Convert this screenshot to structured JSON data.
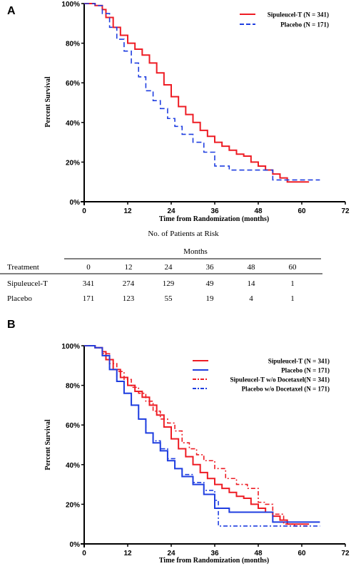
{
  "panel_a": {
    "letter": "A"
  },
  "panel_b": {
    "letter": "B"
  },
  "risk_table": {
    "title": "No. of Patients at Risk",
    "months_header": "Months",
    "treatment_header": "Treatment",
    "columns": [
      "0",
      "12",
      "24",
      "36",
      "48",
      "60"
    ],
    "rows": [
      {
        "label": "Sipuleucel-T",
        "values": [
          "341",
          "274",
          "129",
          "49",
          "14",
          "1"
        ]
      },
      {
        "label": "Placebo",
        "values": [
          "171",
          "123",
          "55",
          "19",
          "4",
          "1"
        ]
      }
    ]
  },
  "chart_data": [
    {
      "type": "line",
      "panel": "A",
      "title": "",
      "xlabel": "Time from Randomization (months)",
      "ylabel": "Percent Survival",
      "xlim": [
        0,
        72
      ],
      "ylim": [
        0,
        100
      ],
      "xticks": [
        "0",
        "12",
        "24",
        "36",
        "48",
        "60",
        "72"
      ],
      "yticks": [
        "0%",
        "20%",
        "40%",
        "60%",
        "80%",
        "100%"
      ],
      "grid": false,
      "legend": "top-right",
      "series": [
        {
          "name": "Sipuleucel-T (N = 341)",
          "color": "#ee1c24",
          "style": "solid",
          "x": [
            0,
            3,
            5,
            6,
            8,
            10,
            12,
            14,
            16,
            18,
            20,
            22,
            24,
            26,
            28,
            30,
            32,
            34,
            36,
            38,
            40,
            42,
            44,
            46,
            48,
            50,
            52,
            54,
            56,
            58,
            60,
            62
          ],
          "y": [
            100,
            99,
            97,
            93,
            88,
            84,
            80,
            77,
            74,
            70,
            65,
            59,
            53,
            48,
            44,
            40,
            36,
            33,
            30,
            28,
            26,
            24,
            23,
            20,
            18,
            16,
            14,
            12,
            10,
            10,
            10,
            10
          ]
        },
        {
          "name": "Placebo (N = 171)",
          "color": "#1f3ee0",
          "style": "dashed",
          "x": [
            0,
            3,
            5,
            7,
            9,
            11,
            13,
            15,
            17,
            19,
            21,
            23,
            25,
            27,
            30,
            33,
            36,
            40,
            44,
            48,
            51,
            52,
            56,
            60,
            65
          ],
          "y": [
            100,
            99,
            95,
            88,
            82,
            76,
            70,
            63,
            56,
            51,
            47,
            42,
            38,
            34,
            30,
            25,
            18,
            16,
            16,
            16,
            16,
            11,
            11,
            11,
            11
          ]
        }
      ]
    },
    {
      "type": "line",
      "panel": "B",
      "title": "",
      "xlabel": "Time from Randomization (months)",
      "ylabel": "Percent Survival",
      "xlim": [
        0,
        72
      ],
      "ylim": [
        0,
        100
      ],
      "xticks": [
        "0",
        "12",
        "24",
        "36",
        "48",
        "60",
        "72"
      ],
      "yticks": [
        "0%",
        "20%",
        "40%",
        "60%",
        "80%",
        "100%"
      ],
      "grid": false,
      "legend": "top-right",
      "series": [
        {
          "name": "Sipuleucel-T (N = 341)",
          "color": "#ee1c24",
          "style": "solid",
          "x": [
            0,
            3,
            5,
            6,
            8,
            10,
            12,
            14,
            16,
            18,
            20,
            22,
            24,
            26,
            28,
            30,
            32,
            34,
            36,
            38,
            40,
            42,
            44,
            46,
            48,
            50,
            52,
            54,
            56,
            58,
            60,
            62
          ],
          "y": [
            100,
            99,
            97,
            93,
            88,
            84,
            80,
            77,
            74,
            70,
            65,
            59,
            53,
            48,
            44,
            40,
            36,
            33,
            30,
            28,
            26,
            24,
            23,
            20,
            18,
            16,
            14,
            12,
            10,
            10,
            10,
            10
          ]
        },
        {
          "name": "Placebo (N = 171)",
          "color": "#1f3ee0",
          "style": "solid",
          "x": [
            0,
            3,
            5,
            7,
            9,
            11,
            13,
            15,
            17,
            19,
            21,
            23,
            25,
            27,
            30,
            33,
            36,
            40,
            44,
            48,
            51,
            52,
            56,
            60,
            65
          ],
          "y": [
            100,
            99,
            95,
            88,
            82,
            76,
            70,
            63,
            56,
            51,
            47,
            42,
            38,
            34,
            30,
            25,
            18,
            16,
            16,
            16,
            16,
            11,
            11,
            11,
            11
          ]
        },
        {
          "name": "Sipuleucel-T w/o Docetaxel(N = 341)",
          "color": "#ee1c24",
          "style": "dashdot",
          "x": [
            0,
            3,
            5,
            7,
            9,
            11,
            13,
            15,
            17,
            19,
            21,
            23,
            25,
            27,
            29,
            31,
            33,
            36,
            39,
            42,
            45,
            48,
            50,
            52,
            55,
            58,
            62
          ],
          "y": [
            100,
            99,
            96,
            91,
            87,
            83,
            79,
            76,
            72,
            67,
            63,
            61,
            57,
            51,
            48,
            45,
            42,
            38,
            33,
            30,
            28,
            21,
            20,
            15,
            10,
            9,
            9
          ]
        },
        {
          "name": "Placebo w/o Docetaxel (N = 171)",
          "color": "#1f3ee0",
          "style": "dashdot",
          "x": [
            0,
            3,
            5,
            7,
            9,
            11,
            13,
            15,
            17,
            19,
            21,
            23,
            25,
            27,
            30,
            33,
            36,
            37,
            42,
            48,
            55,
            60,
            65
          ],
          "y": [
            100,
            99,
            95,
            88,
            82,
            76,
            70,
            63,
            56,
            52,
            48,
            43,
            38,
            35,
            31,
            27,
            22,
            9,
            9,
            9,
            9,
            9,
            9
          ]
        }
      ]
    }
  ]
}
